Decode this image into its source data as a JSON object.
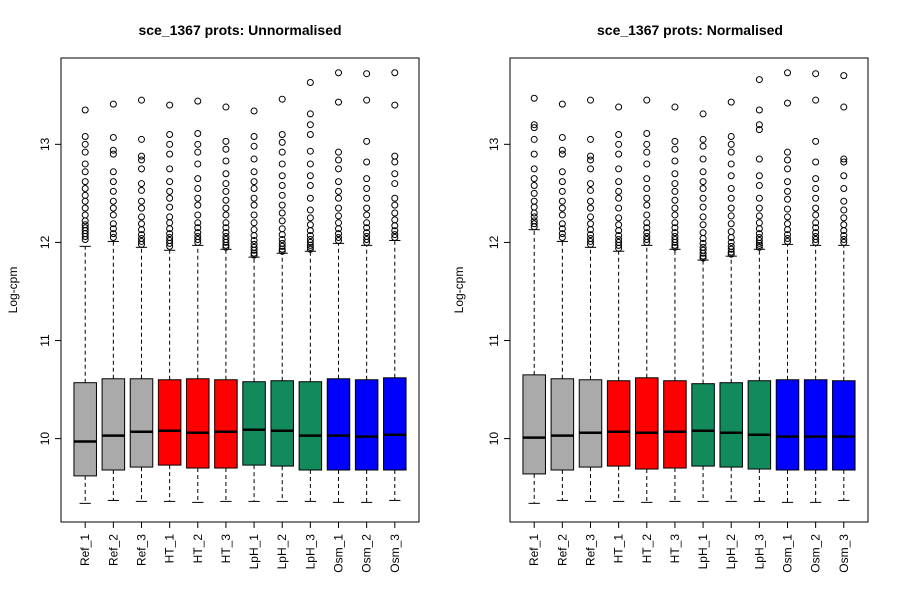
{
  "colors": {
    "Ref": "#aaaaaa",
    "HT": "#ff0000",
    "LpH": "#138a5c",
    "Osm": "#0000ff"
  },
  "chart_data": [
    {
      "type": "boxplot",
      "title": "sce_1367 prots: Unnormalised",
      "ylabel": "Log-cpm",
      "ylim": [
        9.15,
        13.88
      ],
      "yticks": [
        "10",
        "11",
        "12",
        "13"
      ],
      "grid": false,
      "categories": [
        "Ref_1",
        "Ref_2",
        "Ref_3",
        "HT_1",
        "HT_2",
        "HT_3",
        "LpH_1",
        "LpH_2",
        "LpH_3",
        "Osm_1",
        "Osm_2",
        "Osm_3"
      ],
      "groups": [
        "Ref",
        "Ref",
        "Ref",
        "HT",
        "HT",
        "HT",
        "LpH",
        "LpH",
        "LpH",
        "Osm",
        "Osm",
        "Osm"
      ],
      "boxes": [
        {
          "q1": 9.62,
          "median": 9.97,
          "q3": 10.57,
          "low": 9.34,
          "high": 11.96,
          "outliers": [
            12.03,
            12.06,
            12.09,
            12.12,
            12.15,
            12.18,
            12.22,
            12.28,
            12.35,
            12.42,
            12.48,
            12.55,
            12.62,
            12.72,
            12.8,
            12.92,
            13.0,
            13.08,
            13.35
          ]
        },
        {
          "q1": 9.68,
          "median": 10.03,
          "q3": 10.61,
          "low": 9.37,
          "high": 12.01,
          "outliers": [
            12.05,
            12.09,
            12.14,
            12.19,
            12.28,
            12.35,
            12.42,
            12.52,
            12.62,
            12.72,
            12.9,
            12.94,
            13.07,
            13.41
          ]
        },
        {
          "q1": 9.71,
          "median": 10.07,
          "q3": 10.61,
          "low": 9.36,
          "high": 11.95,
          "outliers": [
            11.98,
            12.01,
            12.04,
            12.08,
            12.13,
            12.19,
            12.26,
            12.35,
            12.42,
            12.53,
            12.6,
            12.75,
            12.84,
            12.88,
            13.05,
            13.45
          ]
        },
        {
          "q1": 9.73,
          "median": 10.08,
          "q3": 10.6,
          "low": 9.36,
          "high": 11.92,
          "outliers": [
            11.96,
            11.99,
            12.02,
            12.05,
            12.09,
            12.14,
            12.2,
            12.26,
            12.36,
            12.45,
            12.52,
            12.62,
            12.75,
            12.9,
            13.0,
            13.1,
            13.4
          ]
        },
        {
          "q1": 9.7,
          "median": 10.06,
          "q3": 10.61,
          "low": 9.35,
          "high": 11.97,
          "outliers": [
            12.0,
            12.03,
            12.06,
            12.1,
            12.15,
            12.2,
            12.28,
            12.38,
            12.45,
            12.55,
            12.65,
            12.8,
            12.92,
            13.0,
            13.11,
            13.44
          ]
        },
        {
          "q1": 9.7,
          "median": 10.07,
          "q3": 10.6,
          "low": 9.36,
          "high": 11.93,
          "outliers": [
            11.95,
            11.97,
            12.0,
            12.03,
            12.06,
            12.1,
            12.15,
            12.2,
            12.28,
            12.35,
            12.43,
            12.52,
            12.6,
            12.7,
            12.83,
            12.95,
            13.03,
            13.38
          ]
        },
        {
          "q1": 9.73,
          "median": 10.09,
          "q3": 10.58,
          "low": 9.36,
          "high": 11.85,
          "outliers": [
            11.87,
            11.89,
            11.92,
            11.95,
            11.98,
            12.02,
            12.07,
            12.13,
            12.2,
            12.28,
            12.38,
            12.45,
            12.55,
            12.62,
            12.72,
            12.85,
            12.98,
            13.08,
            13.34
          ]
        },
        {
          "q1": 9.72,
          "median": 10.08,
          "q3": 10.59,
          "low": 9.36,
          "high": 11.89,
          "outliers": [
            11.91,
            11.93,
            11.96,
            11.99,
            12.03,
            12.08,
            12.14,
            12.22,
            12.3,
            12.38,
            12.48,
            12.58,
            12.68,
            12.8,
            12.92,
            13.02,
            13.1,
            13.46
          ]
        },
        {
          "q1": 9.68,
          "median": 10.03,
          "q3": 10.58,
          "low": 9.36,
          "high": 11.91,
          "outliers": [
            11.93,
            11.95,
            11.97,
            12.0,
            12.03,
            12.07,
            12.12,
            12.18,
            12.25,
            12.33,
            12.45,
            12.58,
            12.68,
            12.8,
            12.93,
            13.1,
            13.2,
            13.31,
            13.63
          ]
        },
        {
          "q1": 9.68,
          "median": 10.03,
          "q3": 10.61,
          "low": 9.35,
          "high": 11.99,
          "outliers": [
            12.02,
            12.05,
            12.09,
            12.14,
            12.2,
            12.27,
            12.35,
            12.45,
            12.52,
            12.62,
            12.75,
            12.84,
            12.92,
            13.43,
            13.73
          ]
        },
        {
          "q1": 9.68,
          "median": 10.02,
          "q3": 10.6,
          "low": 9.35,
          "high": 11.97,
          "outliers": [
            12.0,
            12.03,
            12.06,
            12.1,
            12.15,
            12.2,
            12.28,
            12.35,
            12.45,
            12.55,
            12.65,
            12.82,
            13.03,
            13.45,
            13.72
          ]
        },
        {
          "q1": 9.68,
          "median": 10.04,
          "q3": 10.62,
          "low": 9.37,
          "high": 12.02,
          "outliers": [
            12.05,
            12.08,
            12.12,
            12.17,
            12.23,
            12.3,
            12.38,
            12.45,
            12.6,
            12.7,
            12.82,
            12.88,
            13.4,
            13.73
          ]
        }
      ]
    },
    {
      "type": "boxplot",
      "title": "sce_1367 prots: Normalised",
      "ylabel": "Log-cpm",
      "ylim": [
        9.15,
        13.88
      ],
      "yticks": [
        "10",
        "11",
        "12",
        "13"
      ],
      "grid": false,
      "categories": [
        "Ref_1",
        "Ref_2",
        "Ref_3",
        "HT_1",
        "HT_2",
        "HT_3",
        "LpH_1",
        "LpH_2",
        "LpH_3",
        "Osm_1",
        "Osm_2",
        "Osm_3"
      ],
      "groups": [
        "Ref",
        "Ref",
        "Ref",
        "HT",
        "HT",
        "HT",
        "LpH",
        "LpH",
        "LpH",
        "Osm",
        "Osm",
        "Osm"
      ],
      "boxes": [
        {
          "q1": 9.64,
          "median": 10.01,
          "q3": 10.65,
          "low": 9.34,
          "high": 12.13,
          "outliers": [
            12.16,
            12.19,
            12.22,
            12.26,
            12.3,
            12.36,
            12.42,
            12.5,
            12.58,
            12.65,
            12.75,
            12.9,
            13.05,
            13.17,
            13.2,
            13.47
          ]
        },
        {
          "q1": 9.68,
          "median": 10.03,
          "q3": 10.61,
          "low": 9.37,
          "high": 12.01,
          "outliers": [
            12.05,
            12.09,
            12.14,
            12.19,
            12.28,
            12.35,
            12.42,
            12.52,
            12.62,
            12.72,
            12.9,
            12.94,
            13.07,
            13.41
          ]
        },
        {
          "q1": 9.71,
          "median": 10.06,
          "q3": 10.6,
          "low": 9.36,
          "high": 11.95,
          "outliers": [
            11.98,
            12.01,
            12.04,
            12.08,
            12.13,
            12.19,
            12.26,
            12.35,
            12.42,
            12.53,
            12.6,
            12.75,
            12.84,
            12.88,
            13.05,
            13.45
          ]
        },
        {
          "q1": 9.72,
          "median": 10.07,
          "q3": 10.59,
          "low": 9.36,
          "high": 11.91,
          "outliers": [
            11.94,
            11.97,
            12.0,
            12.03,
            12.07,
            12.12,
            12.18,
            12.25,
            12.35,
            12.45,
            12.52,
            12.62,
            12.75,
            12.9,
            13.0,
            13.1,
            13.38
          ]
        },
        {
          "q1": 9.69,
          "median": 10.06,
          "q3": 10.62,
          "low": 9.35,
          "high": 11.97,
          "outliers": [
            12.0,
            12.03,
            12.06,
            12.1,
            12.15,
            12.2,
            12.28,
            12.38,
            12.45,
            12.55,
            12.65,
            12.8,
            12.92,
            13.0,
            13.11,
            13.45
          ]
        },
        {
          "q1": 9.7,
          "median": 10.07,
          "q3": 10.59,
          "low": 9.36,
          "high": 11.93,
          "outliers": [
            11.95,
            11.97,
            12.0,
            12.03,
            12.06,
            12.1,
            12.15,
            12.2,
            12.28,
            12.35,
            12.43,
            12.52,
            12.6,
            12.7,
            12.83,
            12.95,
            13.03,
            13.38
          ]
        },
        {
          "q1": 9.72,
          "median": 10.08,
          "q3": 10.56,
          "low": 9.36,
          "high": 11.82,
          "outliers": [
            11.84,
            11.86,
            11.89,
            11.92,
            11.95,
            11.99,
            12.04,
            12.1,
            12.18,
            12.26,
            12.36,
            12.45,
            12.55,
            12.62,
            12.72,
            12.85,
            12.98,
            13.05,
            13.31
          ]
        },
        {
          "q1": 9.71,
          "median": 10.06,
          "q3": 10.57,
          "low": 9.36,
          "high": 11.86,
          "outliers": [
            11.88,
            11.9,
            11.93,
            11.96,
            12.0,
            12.05,
            12.11,
            12.19,
            12.27,
            12.35,
            12.45,
            12.55,
            12.68,
            12.8,
            12.92,
            13.0,
            13.08,
            13.43
          ]
        },
        {
          "q1": 9.69,
          "median": 10.04,
          "q3": 10.59,
          "low": 9.36,
          "high": 11.93,
          "outliers": [
            11.95,
            11.97,
            11.99,
            12.02,
            12.05,
            12.09,
            12.14,
            12.2,
            12.27,
            12.35,
            12.45,
            12.58,
            12.68,
            12.85,
            13.15,
            13.2,
            13.35,
            13.66
          ]
        },
        {
          "q1": 9.68,
          "median": 10.02,
          "q3": 10.6,
          "low": 9.35,
          "high": 11.98,
          "outliers": [
            12.01,
            12.04,
            12.08,
            12.13,
            12.19,
            12.26,
            12.34,
            12.44,
            12.52,
            12.62,
            12.75,
            12.84,
            12.92,
            13.42,
            13.73
          ]
        },
        {
          "q1": 9.68,
          "median": 10.02,
          "q3": 10.6,
          "low": 9.35,
          "high": 11.97,
          "outliers": [
            12.0,
            12.03,
            12.06,
            12.1,
            12.15,
            12.2,
            12.28,
            12.35,
            12.45,
            12.55,
            12.65,
            12.82,
            13.03,
            13.45,
            13.72
          ]
        },
        {
          "q1": 9.68,
          "median": 10.02,
          "q3": 10.59,
          "low": 9.37,
          "high": 11.97,
          "outliers": [
            12.0,
            12.03,
            12.07,
            12.12,
            12.18,
            12.25,
            12.33,
            12.42,
            12.55,
            12.68,
            12.82,
            12.85,
            13.38,
            13.7
          ]
        }
      ]
    }
  ]
}
